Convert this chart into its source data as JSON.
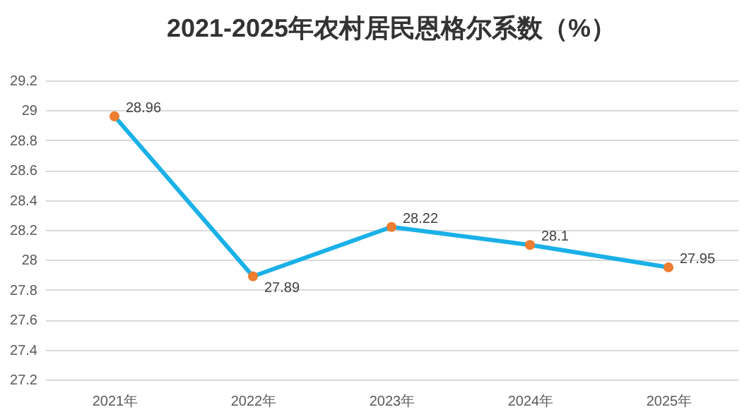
{
  "chart_data": {
    "type": "line",
    "title": "2021-2025年农村居民恩格尔系数（%）",
    "categories": [
      "2021年",
      "2022年",
      "2023年",
      "2024年",
      "2025年"
    ],
    "series": [
      {
        "color": "#1ab0e8",
        "colors": [
          "#ed7d31",
          "#ed7d31",
          "#ed7d31",
          "#ed7d31",
          "#ed7d31"
        ],
        "values": [
          28.96,
          27.89,
          28.22,
          28.1,
          27.95
        ]
      }
    ],
    "ylim": [
      27.2,
      29.2
    ],
    "yticks": [
      27.2,
      27.4,
      27.6,
      27.8,
      28,
      28.2,
      28.4,
      28.6,
      28.8,
      29,
      29.2
    ],
    "grid": "y",
    "marker": "circle",
    "data_labels": true,
    "legend": false,
    "line_style": "solid"
  }
}
